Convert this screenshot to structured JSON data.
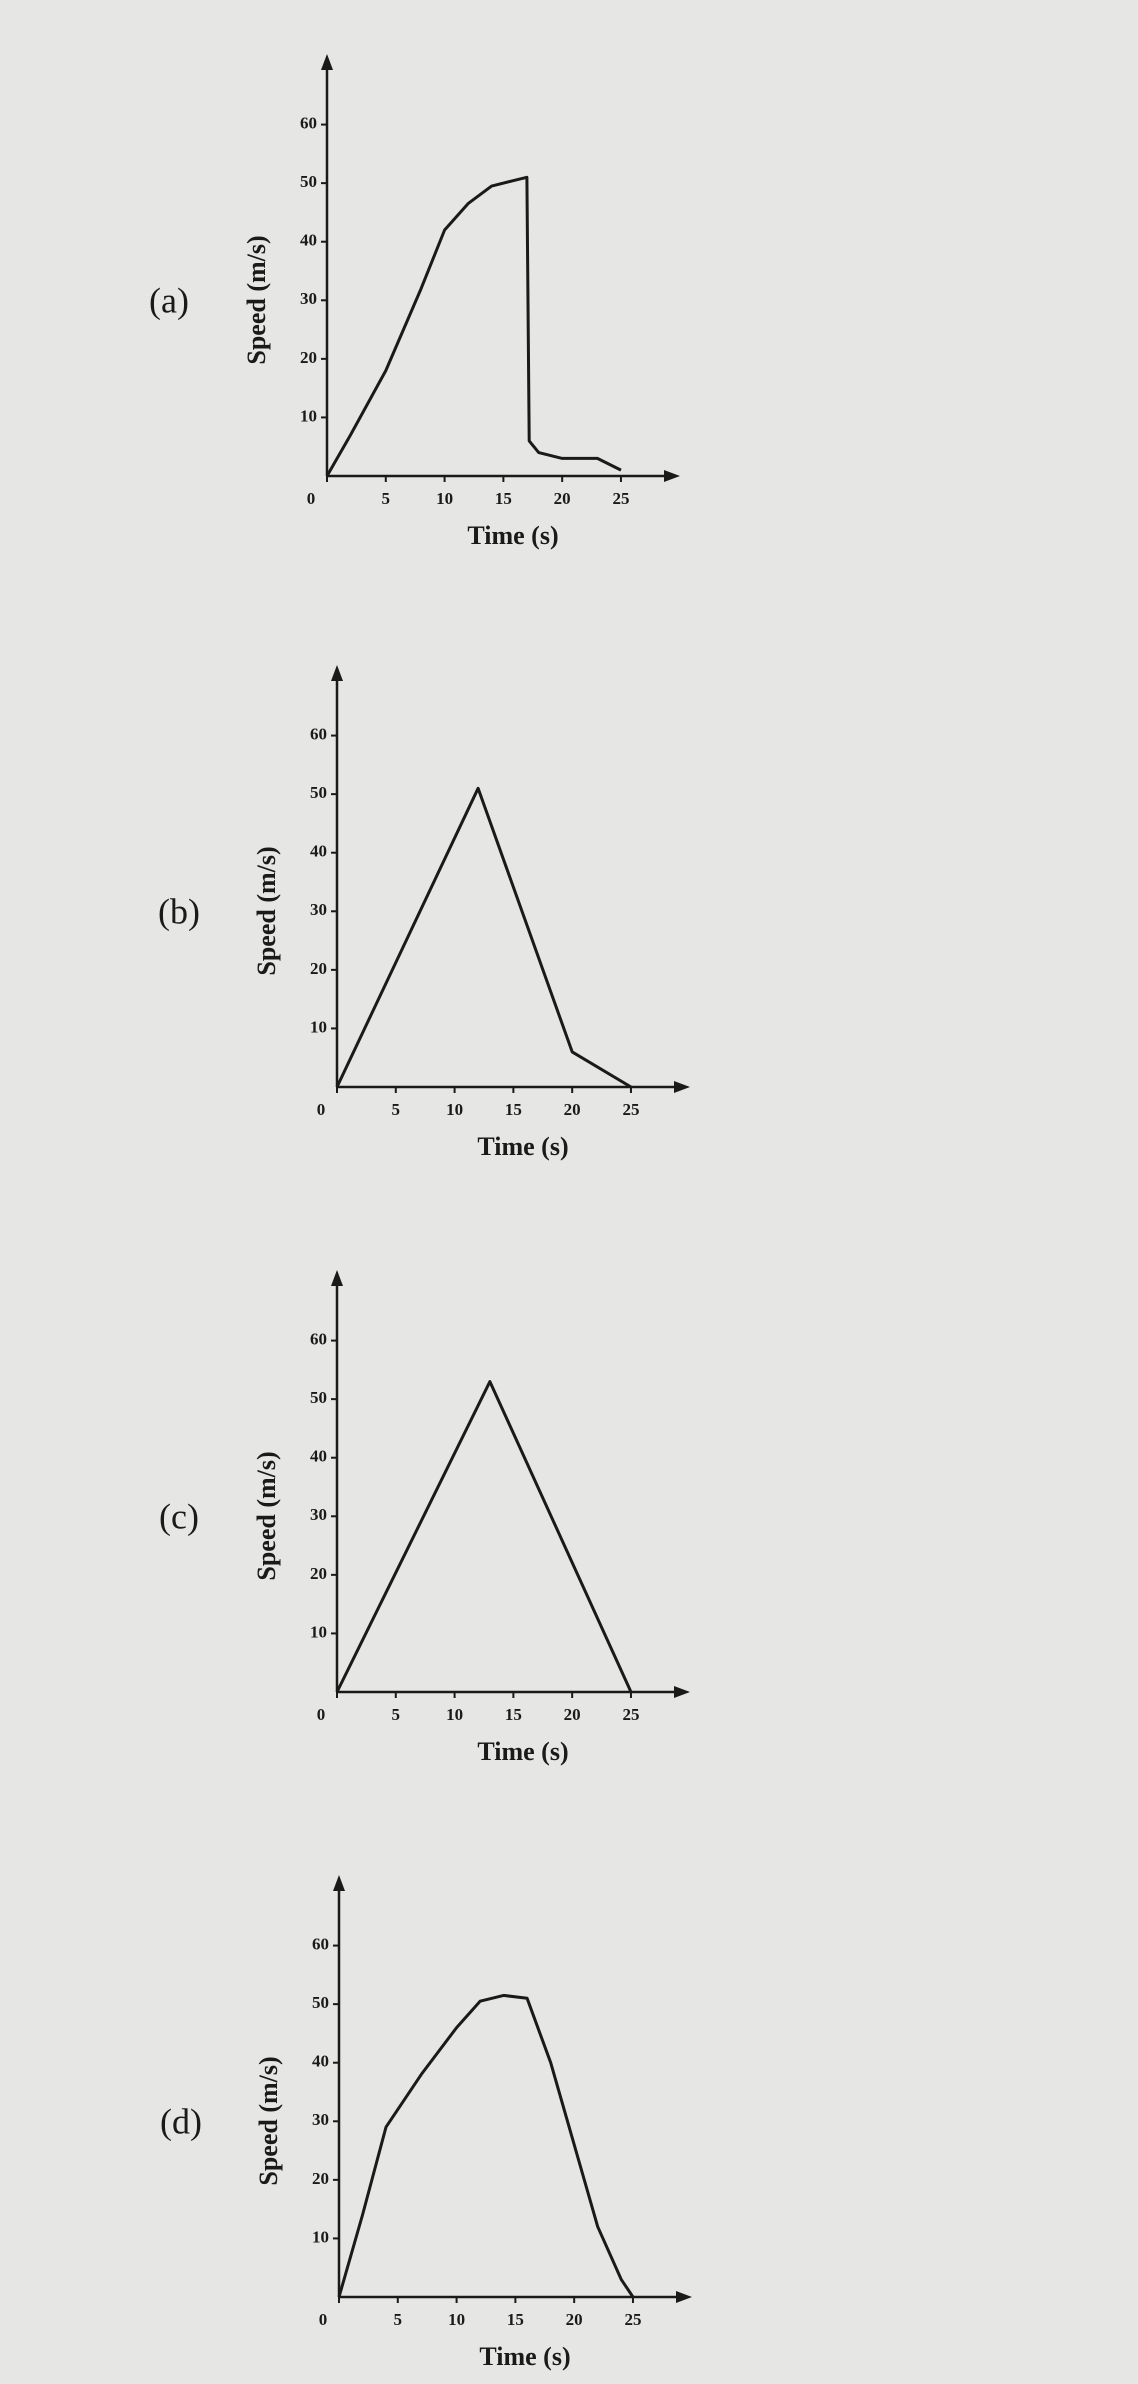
{
  "chart_data": [
    {
      "type": "line",
      "label": "(a)",
      "xlabel": "Time (s)",
      "ylabel": "Speed (m/s)",
      "color": "#1a1a1a",
      "x": [
        0,
        2,
        5,
        8,
        10,
        12,
        14,
        16,
        17,
        17.2,
        18,
        20,
        23,
        25
      ],
      "values": [
        0,
        7,
        18,
        32,
        42,
        46.5,
        49.5,
        50.5,
        51,
        6,
        4,
        3,
        3,
        1
      ],
      "xlim": [
        0,
        29
      ],
      "ylim": [
        0,
        70
      ],
      "xticks": [
        0,
        5,
        10,
        15,
        20,
        25
      ],
      "yticks": [
        10,
        20,
        30,
        40,
        50,
        60
      ]
    },
    {
      "type": "line",
      "label": "(b)",
      "xlabel": "Time (s)",
      "ylabel": "Speed (m/s)",
      "color": "#1a1a1a",
      "x": [
        0,
        12,
        20,
        25
      ],
      "values": [
        0,
        51,
        6,
        0
      ],
      "xlim": [
        0,
        29
      ],
      "ylim": [
        0,
        70
      ],
      "xticks": [
        0,
        5,
        10,
        15,
        20,
        25
      ],
      "yticks": [
        10,
        20,
        30,
        40,
        50,
        60
      ]
    },
    {
      "type": "line",
      "label": "(c)",
      "xlabel": "Time (s)",
      "ylabel": "Speed (m/s)",
      "color": "#1a1a1a",
      "x": [
        0,
        13,
        25
      ],
      "values": [
        0,
        53,
        0
      ],
      "xlim": [
        0,
        29
      ],
      "ylim": [
        0,
        70
      ],
      "xticks": [
        0,
        5,
        10,
        15,
        20,
        25
      ],
      "yticks": [
        10,
        20,
        30,
        40,
        50,
        60
      ]
    },
    {
      "type": "line",
      "label": "(d)",
      "xlabel": "Time (s)",
      "ylabel": "Speed (m/s)",
      "color": "#1a1a1a",
      "x": [
        0,
        2,
        4,
        7,
        10,
        12,
        14,
        16,
        18,
        20,
        22,
        24,
        25
      ],
      "values": [
        0,
        14,
        29,
        38,
        46,
        50.5,
        51.5,
        51,
        40,
        26,
        12,
        3,
        0
      ],
      "xlim": [
        0,
        29
      ],
      "ylim": [
        0,
        70
      ],
      "xticks": [
        0,
        5,
        10,
        15,
        20,
        25
      ],
      "yticks": [
        10,
        20,
        30,
        40,
        50,
        60
      ]
    }
  ]
}
